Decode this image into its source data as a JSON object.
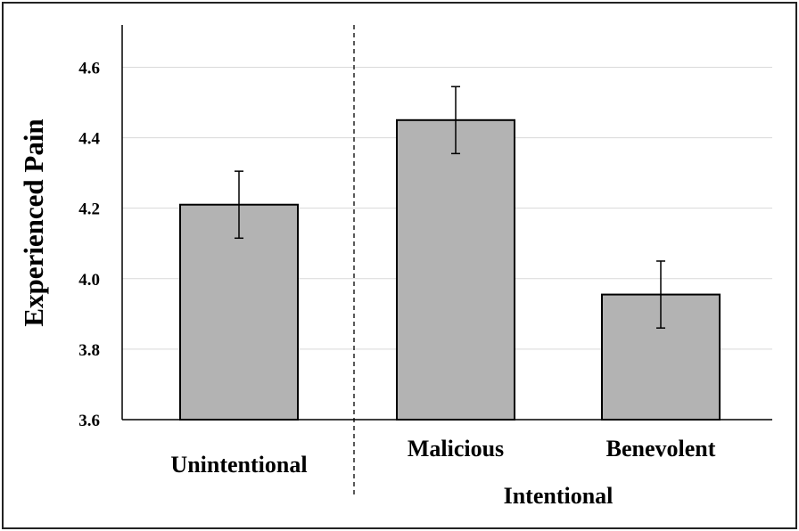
{
  "chart_data": {
    "type": "bar",
    "categories": [
      "Unintentional",
      "Malicious",
      "Benevolent"
    ],
    "values": [
      4.21,
      4.45,
      3.955
    ],
    "errors": [
      0.095,
      0.095,
      0.095
    ],
    "ylabel": "Experienced Pain",
    "group_label": "Intentional",
    "ylim": [
      3.6,
      4.72
    ],
    "yticks": [
      "3.6",
      "3.8",
      "4.0",
      "4.2",
      "4.4",
      "4.6"
    ],
    "grid": true,
    "colors": {
      "bar": "#b3b3b3",
      "bar_stroke": "#000000",
      "grid": "#d9d9d9"
    }
  }
}
